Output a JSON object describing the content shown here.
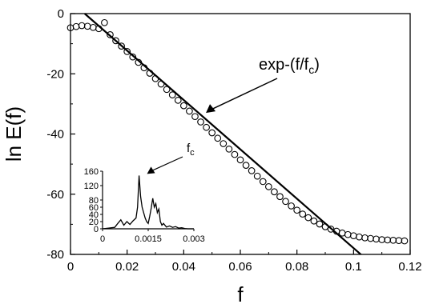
{
  "chart_data": [
    {
      "type": "scatter",
      "title": "",
      "xlabel": "f",
      "ylabel": "ln E(f)",
      "xlim": [
        0,
        0.12
      ],
      "ylim": [
        -80,
        0
      ],
      "x_ticks": [
        "0",
        "0.02",
        "0.04",
        "0.06",
        "0.08",
        "0.1",
        "0.12"
      ],
      "y_ticks": [
        "0",
        "-20",
        "-40",
        "-60",
        "-80"
      ],
      "grid": false,
      "series": [
        {
          "name": "",
          "marker": "open-circle",
          "x": [
            0.0,
            0.002,
            0.004,
            0.006,
            0.008,
            0.01,
            0.012,
            0.014,
            0.016,
            0.018,
            0.02,
            0.022,
            0.024,
            0.026,
            0.028,
            0.03,
            0.032,
            0.034,
            0.036,
            0.038,
            0.04,
            0.042,
            0.044,
            0.046,
            0.048,
            0.05,
            0.052,
            0.054,
            0.056,
            0.058,
            0.06,
            0.062,
            0.064,
            0.066,
            0.068,
            0.07,
            0.072,
            0.074,
            0.076,
            0.078,
            0.08,
            0.082,
            0.084,
            0.086,
            0.088,
            0.09,
            0.092,
            0.094,
            0.096,
            0.098,
            0.1,
            0.102,
            0.104,
            0.106,
            0.108,
            0.11,
            0.112,
            0.114,
            0.116,
            0.118
          ],
          "y": [
            -4.7,
            -4.3,
            -4.0,
            -4.2,
            -4.6,
            -5.0,
            -3.0,
            -7.0,
            -9.0,
            -10.8,
            -12.6,
            -14.4,
            -16.2,
            -18.0,
            -19.8,
            -21.6,
            -23.4,
            -25.2,
            -27.0,
            -28.8,
            -30.6,
            -32.4,
            -34.2,
            -36.0,
            -37.8,
            -39.6,
            -41.4,
            -43.2,
            -45.0,
            -46.8,
            -48.6,
            -50.4,
            -52.2,
            -54.0,
            -55.8,
            -57.5,
            -59.2,
            -60.8,
            -62.4,
            -63.9,
            -65.3,
            -66.6,
            -67.8,
            -68.9,
            -69.9,
            -70.8,
            -71.6,
            -72.3,
            -72.9,
            -73.4,
            -73.8,
            -74.2,
            -74.5,
            -74.7,
            -74.9,
            -75.1,
            -75.2,
            -75.3,
            -75.4,
            -75.5
          ]
        },
        {
          "name": "",
          "marker": "line",
          "x": [
            0.005,
            0.105
          ],
          "y": [
            0,
            -82
          ]
        }
      ],
      "annotations": [
        {
          "text": "exp-(f/f",
          "subscript": "c",
          "suffix": ")",
          "arrow_to": [
            0.047,
            -33
          ]
        }
      ]
    },
    {
      "type": "line",
      "title": "",
      "xlabel": "",
      "ylabel": "",
      "xlim": [
        0,
        0.003
      ],
      "ylim": [
        0,
        160
      ],
      "x_ticks": [
        "0",
        "0.0015",
        "0.003"
      ],
      "y_ticks": [
        "0",
        "20",
        "40",
        "60",
        "80",
        "120",
        "160"
      ],
      "series": [
        {
          "name": "",
          "x": [
            0.0,
            0.0002,
            0.0004,
            0.0005,
            0.0006,
            0.0007,
            0.0008,
            0.0009,
            0.001,
            0.0011,
            0.00115,
            0.0012,
            0.00125,
            0.0013,
            0.00135,
            0.0014,
            0.00145,
            0.0015,
            0.00155,
            0.0016,
            0.00165,
            0.0017,
            0.00175,
            0.0018,
            0.00185,
            0.0019,
            0.00195,
            0.002,
            0.0021,
            0.0022,
            0.0023,
            0.0024,
            0.0025,
            0.0026,
            0.0027,
            0.0028,
            0.003
          ],
          "y": [
            0,
            2,
            4,
            15,
            25,
            10,
            20,
            12,
            22,
            30,
            60,
            148,
            90,
            60,
            45,
            30,
            20,
            15,
            35,
            58,
            85,
            60,
            70,
            45,
            55,
            20,
            10,
            15,
            5,
            8,
            4,
            6,
            2,
            3,
            1,
            0,
            0
          ]
        }
      ],
      "annotations": [
        {
          "text": "f",
          "subscript": "c",
          "arrow_to": [
            0.00125,
            148
          ]
        }
      ]
    }
  ]
}
